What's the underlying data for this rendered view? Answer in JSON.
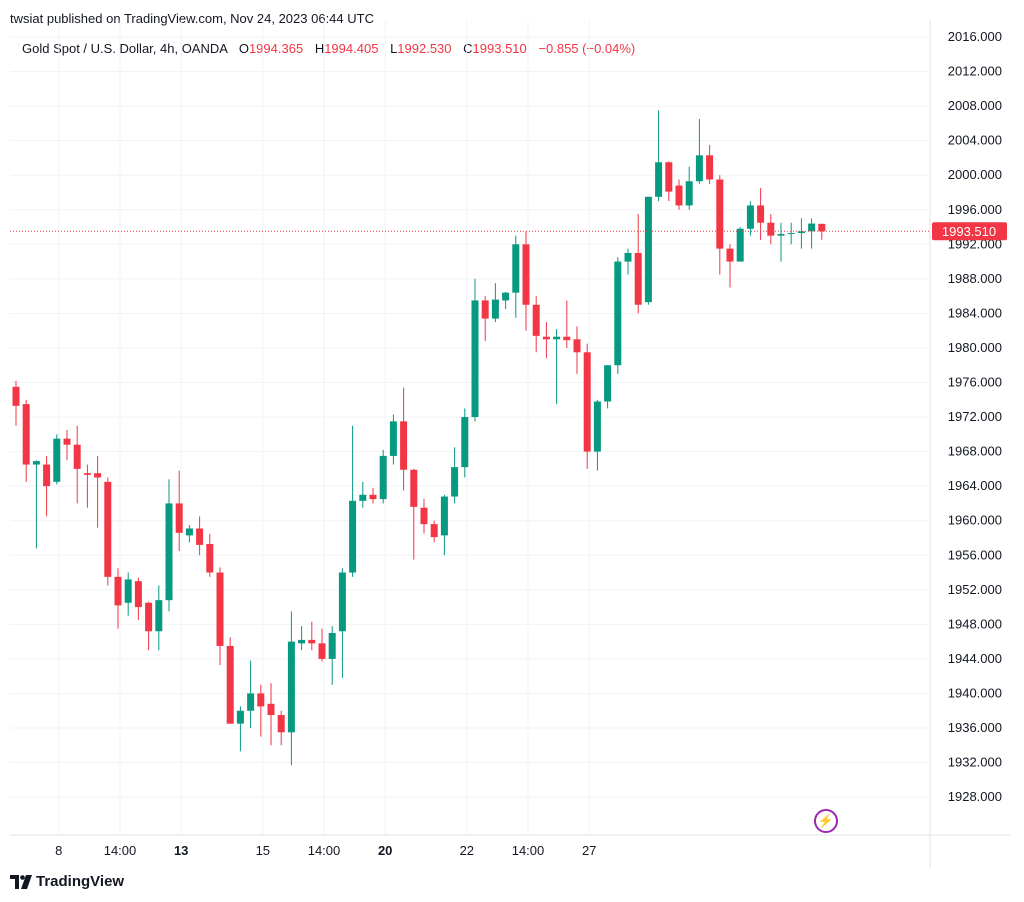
{
  "header": {
    "published": "twsiat published on TradingView.com, Nov 24, 2023 06:44 UTC"
  },
  "legend": {
    "symbol": "Gold Spot / U.S. Dollar, 4h, OANDA",
    "o_label": "O",
    "o_value": "1994.365",
    "h_label": "H",
    "h_value": "1994.405",
    "l_label": "L",
    "l_value": "1992.530",
    "c_label": "C",
    "c_value": "1993.510",
    "change": "−0.855 (−0.04%)"
  },
  "footer": {
    "brand": "TradingView"
  },
  "colors": {
    "up": "#089981",
    "down": "#f23645",
    "grid": "#f0f3fa",
    "text": "#131722"
  },
  "chart_data": {
    "type": "candlestick",
    "y_ticks": [
      "2016.000",
      "2012.000",
      "2008.000",
      "2004.000",
      "2000.000",
      "1996.000",
      "1992.000",
      "1988.000",
      "1984.000",
      "1980.000",
      "1976.000",
      "1972.000",
      "1968.000",
      "1964.000",
      "1960.000",
      "1956.000",
      "1952.000",
      "1948.000",
      "1944.000",
      "1940.000",
      "1936.000",
      "1932.000",
      "1928.000"
    ],
    "ylim": [
      1925.5,
      2018.5
    ],
    "x_ticks": [
      {
        "label": "8",
        "bold": false,
        "index": 4.0
      },
      {
        "label": "14:00",
        "bold": false,
        "index": 10.0
      },
      {
        "label": "13",
        "bold": true,
        "index": 16.0
      },
      {
        "label": "15",
        "bold": false,
        "index": 24.0
      },
      {
        "label": "14:00",
        "bold": false,
        "index": 30.0
      },
      {
        "label": "20",
        "bold": true,
        "index": 36.0
      },
      {
        "label": "22",
        "bold": false,
        "index": 44.0
      },
      {
        "label": "14:00",
        "bold": false,
        "index": 50.0
      },
      {
        "label": "27",
        "bold": false,
        "index": 56.0
      }
    ],
    "last_price": "1993.510",
    "last_price_value": 1993.51,
    "candles": [
      {
        "o": 1975.5,
        "h": 1976.2,
        "l": 1971.0,
        "c": 1973.3
      },
      {
        "o": 1973.5,
        "h": 1974.0,
        "l": 1964.5,
        "c": 1966.5
      },
      {
        "o": 1966.5,
        "h": 1967.0,
        "l": 1956.8,
        "c": 1966.9
      },
      {
        "o": 1966.5,
        "h": 1967.5,
        "l": 1960.5,
        "c": 1964.0
      },
      {
        "o": 1964.5,
        "h": 1970.0,
        "l": 1964.2,
        "c": 1969.5
      },
      {
        "o": 1969.5,
        "h": 1970.5,
        "l": 1967.0,
        "c": 1968.8
      },
      {
        "o": 1968.8,
        "h": 1971.0,
        "l": 1962.0,
        "c": 1966.0
      },
      {
        "o": 1965.5,
        "h": 1966.5,
        "l": 1961.5,
        "c": 1965.3
      },
      {
        "o": 1965.5,
        "h": 1967.5,
        "l": 1959.2,
        "c": 1965.0
      },
      {
        "o": 1964.5,
        "h": 1965.0,
        "l": 1952.5,
        "c": 1953.5
      },
      {
        "o": 1953.5,
        "h": 1954.5,
        "l": 1947.5,
        "c": 1950.2
      },
      {
        "o": 1950.5,
        "h": 1954.0,
        "l": 1949.0,
        "c": 1953.2
      },
      {
        "o": 1953.0,
        "h": 1953.4,
        "l": 1948.5,
        "c": 1950.0
      },
      {
        "o": 1950.5,
        "h": 1950.6,
        "l": 1945.0,
        "c": 1947.2
      },
      {
        "o": 1947.2,
        "h": 1952.5,
        "l": 1945.0,
        "c": 1950.8
      },
      {
        "o": 1950.8,
        "h": 1964.8,
        "l": 1949.5,
        "c": 1962.0
      },
      {
        "o": 1962.0,
        "h": 1965.8,
        "l": 1956.5,
        "c": 1958.6
      },
      {
        "o": 1958.3,
        "h": 1959.5,
        "l": 1957.5,
        "c": 1959.1
      },
      {
        "o": 1959.1,
        "h": 1960.5,
        "l": 1956.0,
        "c": 1957.2
      },
      {
        "o": 1957.3,
        "h": 1958.5,
        "l": 1953.5,
        "c": 1954.0
      },
      {
        "o": 1954.0,
        "h": 1954.6,
        "l": 1943.3,
        "c": 1945.5
      },
      {
        "o": 1945.5,
        "h": 1946.5,
        "l": 1936.5,
        "c": 1936.5
      },
      {
        "o": 1936.5,
        "h": 1938.5,
        "l": 1933.3,
        "c": 1938.0
      },
      {
        "o": 1938.0,
        "h": 1943.8,
        "l": 1936.0,
        "c": 1940.0
      },
      {
        "o": 1940.0,
        "h": 1941.0,
        "l": 1935.0,
        "c": 1938.5
      },
      {
        "o": 1938.8,
        "h": 1941.2,
        "l": 1934.0,
        "c": 1937.5
      },
      {
        "o": 1937.5,
        "h": 1938.0,
        "l": 1934.0,
        "c": 1935.5
      },
      {
        "o": 1935.5,
        "h": 1949.5,
        "l": 1931.7,
        "c": 1946.0
      },
      {
        "o": 1945.8,
        "h": 1947.8,
        "l": 1945.0,
        "c": 1946.2
      },
      {
        "o": 1946.2,
        "h": 1948.3,
        "l": 1945.0,
        "c": 1945.8
      },
      {
        "o": 1945.8,
        "h": 1947.5,
        "l": 1943.7,
        "c": 1944.0
      },
      {
        "o": 1944.0,
        "h": 1947.8,
        "l": 1941.0,
        "c": 1947.0
      },
      {
        "o": 1947.2,
        "h": 1954.5,
        "l": 1941.8,
        "c": 1954.0
      },
      {
        "o": 1954.0,
        "h": 1971.0,
        "l": 1953.5,
        "c": 1962.3
      },
      {
        "o": 1962.3,
        "h": 1964.5,
        "l": 1961.5,
        "c": 1963.0
      },
      {
        "o": 1963.0,
        "h": 1963.8,
        "l": 1962.0,
        "c": 1962.5
      },
      {
        "o": 1962.5,
        "h": 1968.2,
        "l": 1962.0,
        "c": 1967.5
      },
      {
        "o": 1967.5,
        "h": 1972.3,
        "l": 1966.5,
        "c": 1971.5
      },
      {
        "o": 1971.5,
        "h": 1975.4,
        "l": 1963.5,
        "c": 1965.9
      },
      {
        "o": 1965.9,
        "h": 1966.0,
        "l": 1955.5,
        "c": 1961.6
      },
      {
        "o": 1961.5,
        "h": 1962.5,
        "l": 1958.5,
        "c": 1959.6
      },
      {
        "o": 1959.6,
        "h": 1960.0,
        "l": 1957.5,
        "c": 1958.1
      },
      {
        "o": 1958.3,
        "h": 1963.0,
        "l": 1956.0,
        "c": 1962.8
      },
      {
        "o": 1962.8,
        "h": 1968.5,
        "l": 1962.0,
        "c": 1966.2
      },
      {
        "o": 1966.2,
        "h": 1973.0,
        "l": 1965.0,
        "c": 1972.0
      },
      {
        "o": 1972.0,
        "h": 1988.0,
        "l": 1971.5,
        "c": 1985.5
      },
      {
        "o": 1985.5,
        "h": 1986.0,
        "l": 1980.8,
        "c": 1983.4
      },
      {
        "o": 1983.4,
        "h": 1987.5,
        "l": 1983.0,
        "c": 1985.6
      },
      {
        "o": 1985.5,
        "h": 1986.5,
        "l": 1984.5,
        "c": 1986.4
      },
      {
        "o": 1986.4,
        "h": 1993.0,
        "l": 1983.5,
        "c": 1992.0
      },
      {
        "o": 1992.0,
        "h": 1993.5,
        "l": 1982.0,
        "c": 1985.0
      },
      {
        "o": 1985.0,
        "h": 1986.0,
        "l": 1979.5,
        "c": 1981.4
      },
      {
        "o": 1981.3,
        "h": 1983.0,
        "l": 1978.8,
        "c": 1981.0
      },
      {
        "o": 1981.0,
        "h": 1982.2,
        "l": 1973.5,
        "c": 1981.3
      },
      {
        "o": 1981.3,
        "h": 1985.5,
        "l": 1980.0,
        "c": 1980.9
      },
      {
        "o": 1981.0,
        "h": 1982.5,
        "l": 1977.0,
        "c": 1979.5
      },
      {
        "o": 1979.5,
        "h": 1980.5,
        "l": 1966.0,
        "c": 1968.0
      },
      {
        "o": 1968.0,
        "h": 1974.0,
        "l": 1965.8,
        "c": 1973.8
      },
      {
        "o": 1973.8,
        "h": 1978.0,
        "l": 1973.0,
        "c": 1978.0
      },
      {
        "o": 1978.0,
        "h": 1990.5,
        "l": 1977.0,
        "c": 1990.0
      },
      {
        "o": 1990.0,
        "h": 1991.5,
        "l": 1988.5,
        "c": 1991.0
      },
      {
        "o": 1991.0,
        "h": 1995.5,
        "l": 1984.0,
        "c": 1985.0
      },
      {
        "o": 1985.3,
        "h": 1997.5,
        "l": 1985.0,
        "c": 1997.5
      },
      {
        "o": 1997.5,
        "h": 2007.5,
        "l": 1997.0,
        "c": 2001.5
      },
      {
        "o": 2001.5,
        "h": 2001.6,
        "l": 1997.0,
        "c": 1998.1
      },
      {
        "o": 1998.8,
        "h": 1999.5,
        "l": 1996.0,
        "c": 1996.5
      },
      {
        "o": 1996.5,
        "h": 2001.0,
        "l": 1996.0,
        "c": 1999.3
      },
      {
        "o": 1999.3,
        "h": 2006.5,
        "l": 1999.0,
        "c": 2002.3
      },
      {
        "o": 2002.3,
        "h": 2003.5,
        "l": 1999.0,
        "c": 1999.5
      },
      {
        "o": 1999.5,
        "h": 2000.0,
        "l": 1988.5,
        "c": 1991.5
      },
      {
        "o": 1991.5,
        "h": 1992.0,
        "l": 1987.0,
        "c": 1990.0
      },
      {
        "o": 1990.0,
        "h": 1994.0,
        "l": 1990.0,
        "c": 1993.8
      },
      {
        "o": 1993.8,
        "h": 1997.0,
        "l": 1993.0,
        "c": 1996.5
      },
      {
        "o": 1996.5,
        "h": 1998.5,
        "l": 1992.5,
        "c": 1994.5
      },
      {
        "o": 1994.5,
        "h": 1995.5,
        "l": 1992.0,
        "c": 1993.0
      },
      {
        "o": 1993.0,
        "h": 1994.5,
        "l": 1990.0,
        "c": 1993.2
      },
      {
        "o": 1993.2,
        "h": 1994.5,
        "l": 1992.0,
        "c": 1993.3
      },
      {
        "o": 1993.3,
        "h": 1995.0,
        "l": 1991.5,
        "c": 1993.5
      },
      {
        "o": 1993.5,
        "h": 1995.0,
        "l": 1991.5,
        "c": 1994.4
      },
      {
        "o": 1994.365,
        "h": 1994.405,
        "l": 1992.53,
        "c": 1993.51
      }
    ]
  }
}
